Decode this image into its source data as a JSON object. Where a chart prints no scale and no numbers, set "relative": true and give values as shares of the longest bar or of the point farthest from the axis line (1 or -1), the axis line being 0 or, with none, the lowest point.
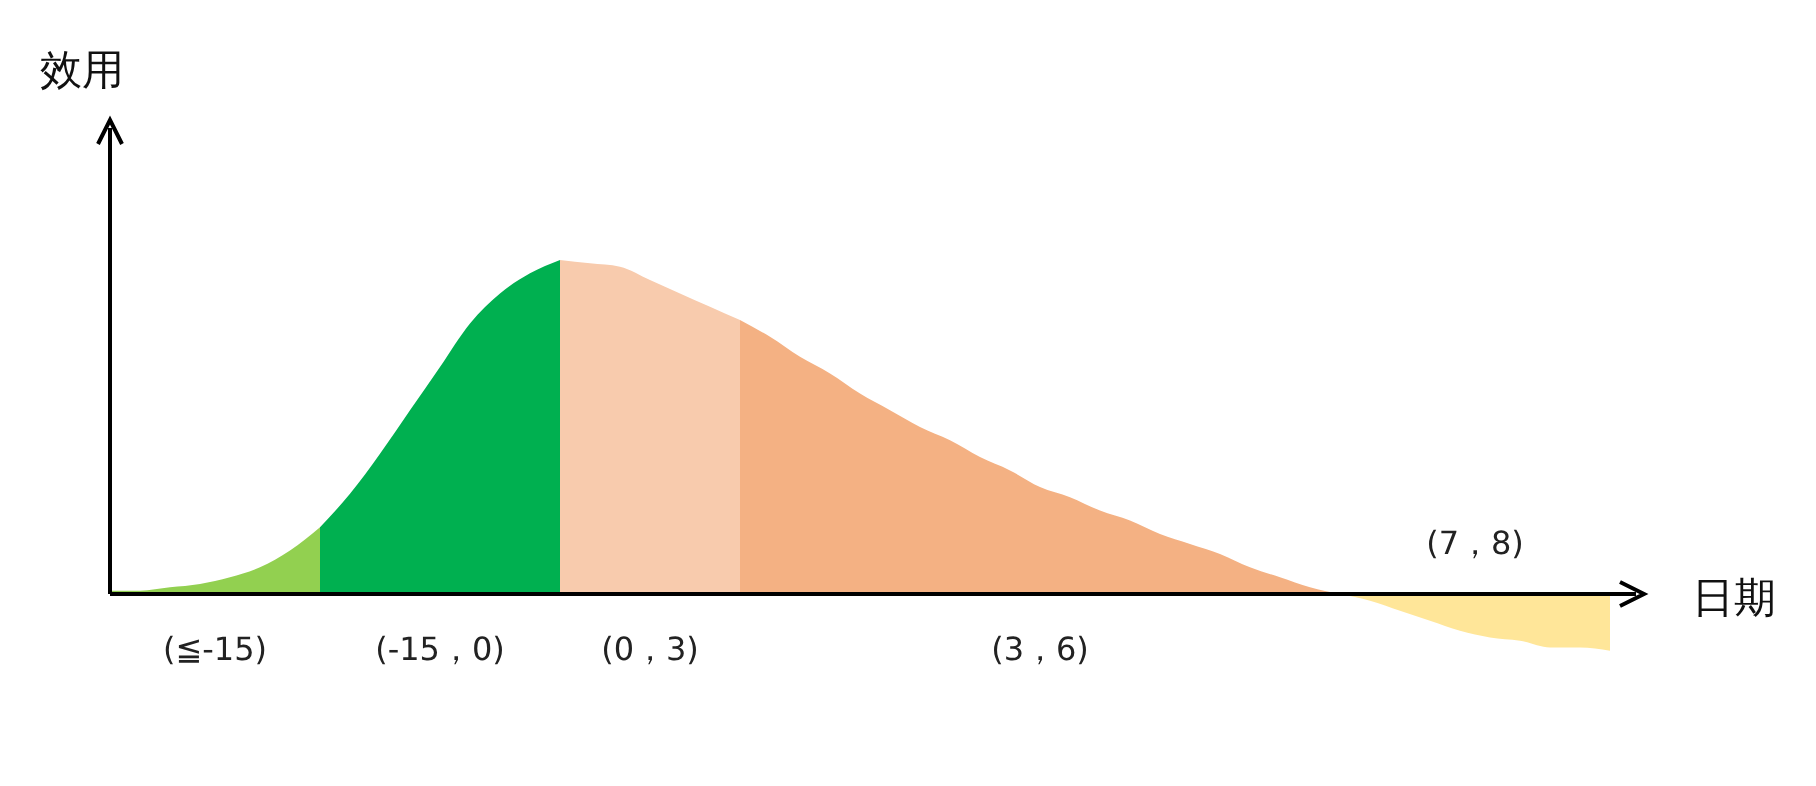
{
  "chart_data": {
    "type": "area",
    "relative": true,
    "xlabel": "日期",
    "ylabel": "效用",
    "categories": [
      null,
      null,
      null,
      null,
      null,
      null,
      null,
      null,
      null,
      null,
      null,
      null,
      null,
      null,
      null,
      null,
      null,
      null,
      null,
      null,
      null,
      null,
      null,
      null,
      null,
      null,
      null,
      null,
      null,
      null,
      null,
      null,
      null,
      null,
      null,
      null,
      null,
      null,
      null,
      null,
      null,
      null,
      null,
      null,
      null,
      null,
      null,
      null,
      null,
      null,
      null
    ],
    "series": [
      {
        "name": "(≦-15)",
        "color": "#92d050",
        "values": [
          0.01,
          0.01,
          0.02,
          0.03,
          0.05,
          0.08,
          0.13,
          0.2,
          null,
          null,
          null,
          null,
          null,
          null,
          null,
          null,
          null,
          null,
          null,
          null,
          null,
          null,
          null,
          null,
          null,
          null,
          null,
          null,
          null,
          null,
          null,
          null,
          null,
          null,
          null,
          null,
          null,
          null,
          null,
          null,
          null,
          null,
          null,
          null,
          null,
          null,
          null,
          null,
          null,
          null,
          null
        ]
      },
      {
        "name": "(-15，0)",
        "color": "#00b050",
        "values": [
          null,
          null,
          null,
          null,
          null,
          null,
          null,
          0.2,
          0.3,
          0.42,
          0.55,
          0.68,
          0.81,
          0.9,
          0.96,
          1,
          null,
          null,
          null,
          null,
          null,
          null,
          null,
          null,
          null,
          null,
          null,
          null,
          null,
          null,
          null,
          null,
          null,
          null,
          null,
          null,
          null,
          null,
          null,
          null,
          null,
          null,
          null,
          null,
          null,
          null,
          null,
          null,
          null,
          null,
          null
        ]
      },
      {
        "name": "(0，3)",
        "color": "#f8cbad",
        "values": [
          null,
          null,
          null,
          null,
          null,
          null,
          null,
          null,
          null,
          null,
          null,
          null,
          null,
          null,
          null,
          1,
          0.99,
          0.98,
          0.94,
          0.9,
          0.86,
          0.82,
          null,
          null,
          null,
          null,
          null,
          null,
          null,
          null,
          null,
          null,
          null,
          null,
          null,
          null,
          null,
          null,
          null,
          null,
          null,
          null,
          null,
          null,
          null,
          null,
          null,
          null,
          null,
          null,
          null
        ]
      },
      {
        "name": "(3，6)",
        "color": "#f4b183",
        "values": [
          null,
          null,
          null,
          null,
          null,
          null,
          null,
          null,
          null,
          null,
          null,
          null,
          null,
          null,
          null,
          null,
          null,
          null,
          null,
          null,
          null,
          0.82,
          0.77,
          0.71,
          0.66,
          0.6,
          0.55,
          0.5,
          0.46,
          0.41,
          0.37,
          0.32,
          0.29,
          0.25,
          0.22,
          0.18,
          0.15,
          0.12,
          0.08,
          0.05,
          0.02,
          0,
          null,
          null,
          null,
          null,
          null,
          null,
          null,
          null,
          null
        ]
      },
      {
        "name": "(7，8)",
        "color": "#ffe699",
        "values": [
          null,
          null,
          null,
          null,
          null,
          null,
          null,
          null,
          null,
          null,
          null,
          null,
          null,
          null,
          null,
          null,
          null,
          null,
          null,
          null,
          null,
          null,
          null,
          null,
          null,
          null,
          null,
          null,
          null,
          null,
          null,
          null,
          null,
          null,
          null,
          null,
          null,
          null,
          null,
          null,
          null,
          0,
          -0.02,
          -0.05,
          -0.08,
          -0.11,
          -0.13,
          -0.14,
          -0.16,
          -0.16,
          -0.17
        ]
      }
    ]
  }
}
